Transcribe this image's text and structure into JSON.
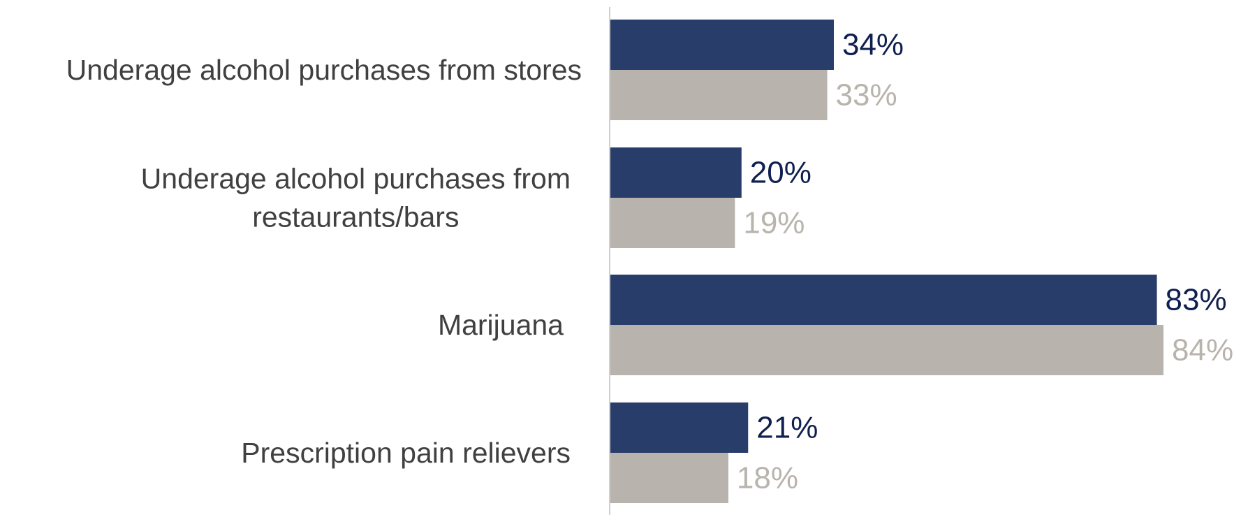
{
  "chart_data": {
    "type": "bar",
    "orientation": "horizontal",
    "categories": [
      [
        "Underage alcohol purchases from stores"
      ],
      [
        "Underage alcohol purchases from",
        "restaurants/bars"
      ],
      [
        "Marijuana"
      ],
      [
        "Prescription pain relievers"
      ]
    ],
    "series": [
      {
        "values": [
          34,
          20,
          83,
          21
        ],
        "labels": [
          "34%",
          "20%",
          "83%",
          "21%"
        ],
        "color": "#283d6a",
        "label_color": "#0f1f4f"
      },
      {
        "values": [
          33,
          19,
          84,
          18
        ],
        "labels": [
          "33%",
          "19%",
          "84%",
          "18%"
        ],
        "color": "#b8b4ad",
        "label_color": "#b8b4ad"
      }
    ],
    "title": "",
    "xlabel": "",
    "ylabel": "",
    "xlim": [
      0,
      100
    ],
    "grid": false,
    "legend": "none",
    "axis_color": "#d0d0d0",
    "category_label_color": "#404040"
  }
}
